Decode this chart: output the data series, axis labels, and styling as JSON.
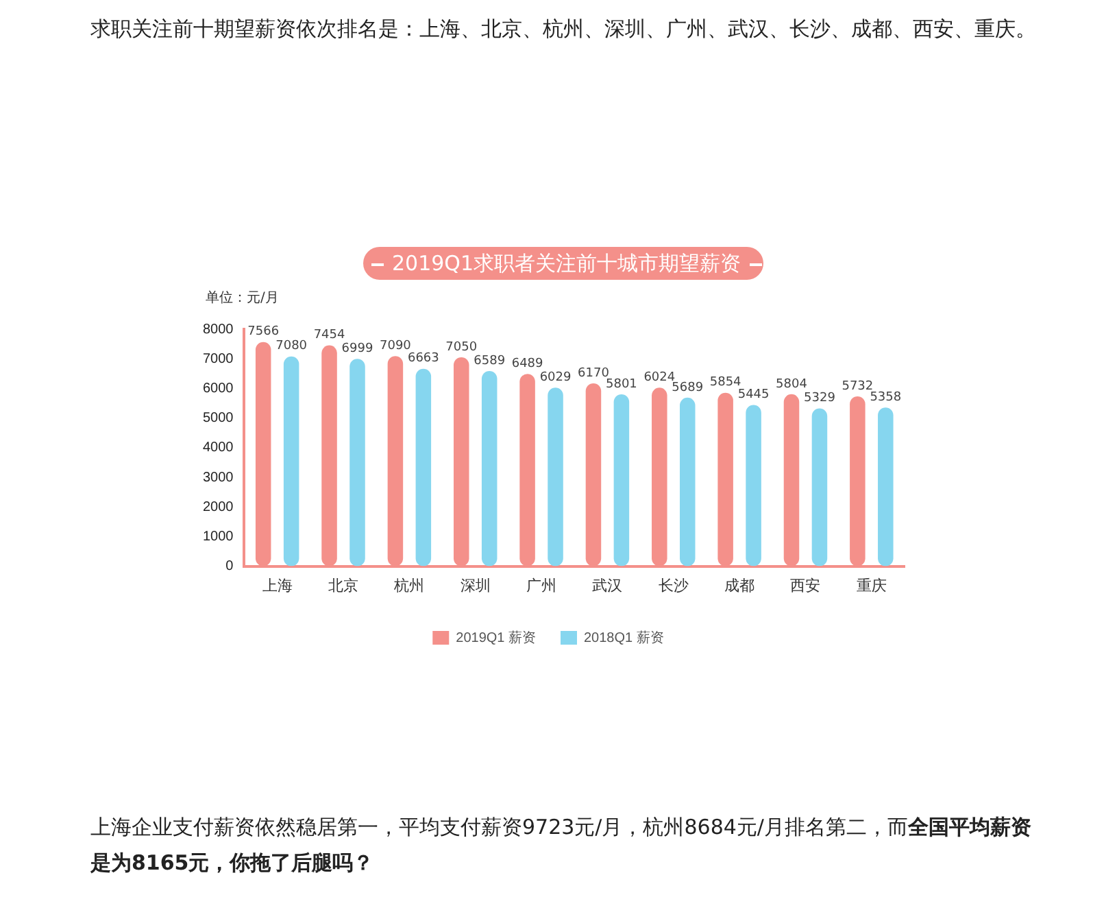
{
  "chart_data": {
    "type": "bar",
    "title": "2019Q1求职者关注前十城市期望薪资",
    "ylabel": "单位：元/月",
    "categories": [
      "上海",
      "北京",
      "杭州",
      "深圳",
      "广州",
      "武汉",
      "长沙",
      "成都",
      "西安",
      "重庆"
    ],
    "series": [
      {
        "name": "2019Q1 薪资",
        "color": "#f4908a",
        "values": [
          7566,
          7454,
          7090,
          7050,
          6489,
          6170,
          6024,
          5854,
          5804,
          5732
        ]
      },
      {
        "name": "2018Q1 薪资",
        "color": "#86d6ef",
        "values": [
          7080,
          6999,
          6663,
          6589,
          6029,
          5801,
          5689,
          5445,
          5329,
          5358
        ]
      }
    ],
    "ylim": [
      0,
      8000
    ],
    "yticks": [
      0,
      1000,
      2000,
      3000,
      4000,
      5000,
      6000,
      7000,
      8000
    ],
    "grid": false,
    "legend": "bottom",
    "data_labels": true,
    "annotations": [
      "求职关注前十期望薪资依次排名是：上海、北京、杭州、深圳、广州、武汉、长沙、成都、西安、重庆。",
      "上海企业支付薪资依然稳居第一，平均支付薪资9723元/月，杭州8684元/月排名第二，而",
      "全国平均薪资是为8165元，你拖了后腿吗？"
    ]
  }
}
